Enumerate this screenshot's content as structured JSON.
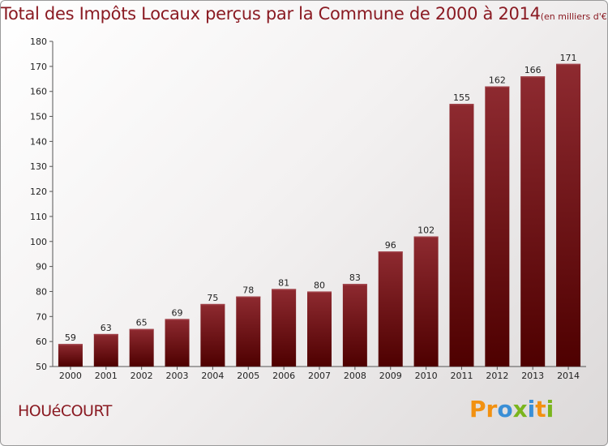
{
  "chart_data": {
    "type": "bar",
    "title": "Total des Impôts Locaux perçus par la Commune de 2000 à 2014",
    "subtitle": "(en milliers d'€)",
    "categories": [
      "2000",
      "2001",
      "2002",
      "2003",
      "2004",
      "2005",
      "2006",
      "2007",
      "2008",
      "2009",
      "2010",
      "2011",
      "2012",
      "2013",
      "2014"
    ],
    "values": [
      59,
      63,
      65,
      69,
      75,
      78,
      81,
      80,
      83,
      96,
      102,
      155,
      162,
      166,
      171
    ],
    "ylim": [
      50,
      180
    ],
    "yticks": [
      50,
      60,
      70,
      80,
      90,
      100,
      110,
      120,
      130,
      140,
      150,
      160,
      170,
      180
    ],
    "grid": false,
    "xlabel": "",
    "ylabel": "",
    "colors": {
      "bar_top": "#8e2a30",
      "bar_bottom": "#4e0000",
      "bar_highlight": "#a04048"
    }
  },
  "commune": "HOUéCOURT",
  "logo": {
    "letters": [
      {
        "ch": "P",
        "color": "#f29111"
      },
      {
        "ch": "r",
        "color": "#f29111"
      },
      {
        "ch": "o",
        "color": "#3a8fd6"
      },
      {
        "ch": "x",
        "color": "#7ab51d"
      },
      {
        "ch": "i",
        "color": "#3a8fd6"
      },
      {
        "ch": "t",
        "color": "#f29111"
      },
      {
        "ch": "i",
        "color": "#7ab51d"
      }
    ]
  }
}
